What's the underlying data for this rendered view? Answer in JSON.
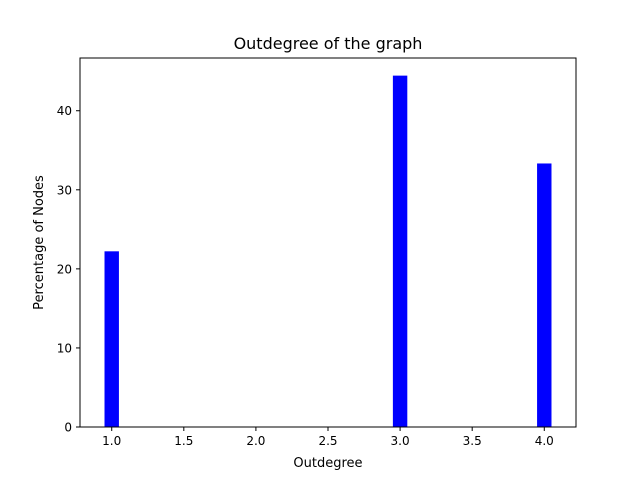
{
  "chart_data": {
    "type": "bar",
    "title": "Outdegree of the graph",
    "xlabel": "Outdegree",
    "ylabel": "Percentage of Nodes",
    "x": [
      1,
      3,
      4
    ],
    "values": [
      22.22,
      44.44,
      33.33
    ],
    "bar_color": "#0000ff",
    "xlim": [
      0.78,
      4.22
    ],
    "ylim": [
      0,
      46.67
    ],
    "xticks": [
      1.0,
      1.5,
      2.0,
      2.5,
      3.0,
      3.5,
      4.0
    ],
    "xtick_labels": [
      "1.0",
      "1.5",
      "2.0",
      "2.5",
      "3.0",
      "3.5",
      "4.0"
    ],
    "yticks": [
      0,
      10,
      20,
      30,
      40
    ],
    "ytick_labels": [
      "0",
      "10",
      "20",
      "30",
      "40"
    ],
    "grid": false,
    "legend": "none"
  }
}
